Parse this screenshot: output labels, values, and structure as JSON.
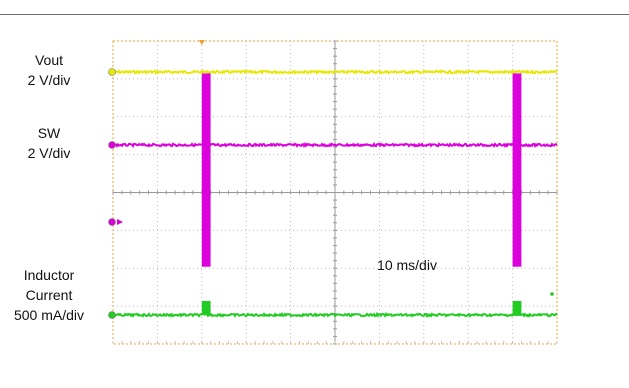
{
  "chart_data": {
    "type": "line",
    "title": "",
    "timebase": "10 ms/div",
    "grid": true,
    "horizontal_divisions": 10,
    "vertical_divisions": 8,
    "series": [
      {
        "name": "Vout",
        "scale": "2 V/div",
        "color": "#e8e800",
        "x": [
          0,
          100
        ],
        "y": [
          0,
          0
        ],
        "pulses": []
      },
      {
        "name": "SW",
        "scale": "2 V/div",
        "color": "#dc00dc",
        "x": [
          0,
          100
        ],
        "y": [
          0,
          0
        ],
        "pulses": [
          {
            "start_ms": 20,
            "width_ms": 2.2,
            "amplitude_div": 4.5,
            "direction": "both"
          },
          {
            "start_ms": 90,
            "width_ms": 2.2,
            "amplitude_div": 4.5,
            "direction": "both"
          }
        ]
      },
      {
        "name": "Inductor Current",
        "scale": "500 mA/div",
        "color": "#22cc22",
        "x": [
          0,
          100
        ],
        "y": [
          0,
          0
        ],
        "pulses": [
          {
            "start_ms": 20,
            "width_ms": 2.2,
            "amplitude_div": 1.0,
            "direction": "up"
          },
          {
            "start_ms": 90,
            "width_ms": 2.2,
            "amplitude_div": 1.0,
            "direction": "up"
          }
        ]
      }
    ],
    "labels": {
      "vout_name": "Vout",
      "vout_scale": "2 V/div",
      "sw_name": "SW",
      "sw_scale": "2 V/div",
      "il_name_line1": "Inductor",
      "il_name_line2": "Current",
      "il_scale": "500 mA/div",
      "timebase": "10 ms/div"
    },
    "colors": {
      "frame": "#f0a030",
      "grid": "#bdbdbd",
      "vout": "#e8e800",
      "sw": "#dc00dc",
      "il": "#22cc22"
    }
  }
}
